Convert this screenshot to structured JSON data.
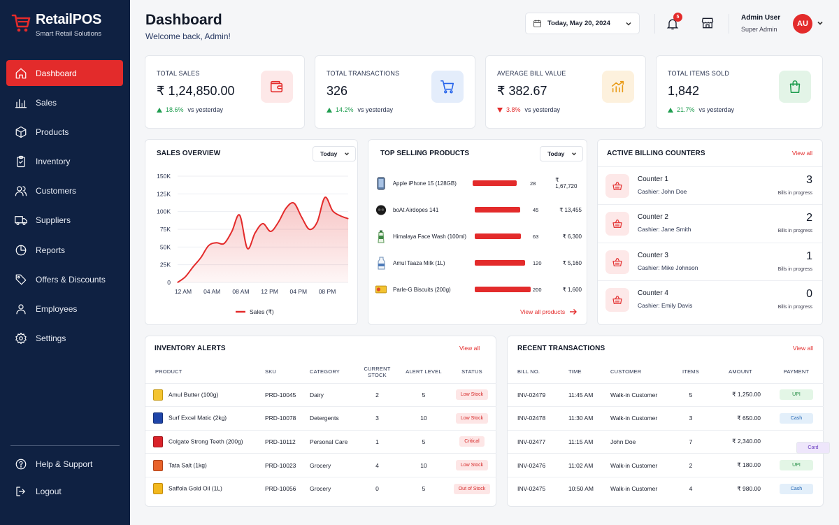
{
  "brand": {
    "name": "RetailPOS",
    "tagline": "Smart Retail Solutions"
  },
  "nav": {
    "items": [
      {
        "label": "Dashboard",
        "icon": "home-icon",
        "active": true
      },
      {
        "label": "Sales",
        "icon": "bar-chart-icon"
      },
      {
        "label": "Products",
        "icon": "box-icon"
      },
      {
        "label": "Inventory",
        "icon": "clipboard-icon"
      },
      {
        "label": "Customers",
        "icon": "users-icon"
      },
      {
        "label": "Suppliers",
        "icon": "truck-icon"
      },
      {
        "label": "Reports",
        "icon": "pie-chart-icon"
      },
      {
        "label": "Offers & Discounts",
        "icon": "tag-icon"
      },
      {
        "label": "Employees",
        "icon": "user-icon"
      },
      {
        "label": "Settings",
        "icon": "gear-icon"
      }
    ],
    "bottom": [
      {
        "label": "Help & Support",
        "icon": "help-icon"
      },
      {
        "label": "Logout",
        "icon": "logout-icon"
      }
    ]
  },
  "header": {
    "title": "Dashboard",
    "subtitle": "Welcome back, Admin!",
    "date": "Today, May 20, 2024",
    "notifications": "5",
    "user_name": "Admin User",
    "user_role": "Super Admin",
    "avatar_initials": "AU"
  },
  "stats": [
    {
      "label": "TOTAL SALES",
      "value": "₹ 1,24,850.00",
      "change": "18.6%",
      "direction": "up",
      "suffix": "vs yesterday",
      "icon": "wallet-icon",
      "color": "#e32b2b",
      "bg": "#fde8e8"
    },
    {
      "label": "TOTAL TRANSACTIONS",
      "value": "326",
      "change": "14.2%",
      "direction": "up",
      "suffix": "vs yesterday",
      "icon": "cart-icon",
      "color": "#2563eb",
      "bg": "#e4edfb"
    },
    {
      "label": "AVERAGE BILL VALUE",
      "value": "₹ 382.67",
      "change": "3.8%",
      "direction": "down",
      "suffix": "vs yesterday",
      "icon": "trend-bars-icon",
      "color": "#e89a16",
      "bg": "#fdf1dd"
    },
    {
      "label": "TOTAL ITEMS SOLD",
      "value": "1,842",
      "change": "21.7%",
      "direction": "up",
      "suffix": "vs yesterday",
      "icon": "bag-icon",
      "color": "#1f9d4f",
      "bg": "#e3f4e7"
    }
  ],
  "sales_overview": {
    "title": "SALES OVERVIEW",
    "range": "Today",
    "legend": "Sales (₹)"
  },
  "chart_data": {
    "type": "area",
    "x_ticks": [
      "12 AM",
      "04 AM",
      "08 AM",
      "12 PM",
      "04 PM",
      "08 PM"
    ],
    "y_ticks": [
      "0",
      "25K",
      "50K",
      "75K",
      "100K",
      "125K",
      "150K"
    ],
    "ylim": [
      0,
      150000
    ],
    "xlim": [
      0,
      22
    ],
    "series": [
      {
        "name": "Sales (₹)",
        "x": [
          0,
          1,
          2,
          3,
          4,
          5,
          6,
          7,
          8,
          9,
          10,
          11,
          12,
          13,
          14,
          15,
          16,
          17,
          18,
          19,
          20,
          21,
          22
        ],
        "values": [
          0,
          8000,
          22000,
          35000,
          52000,
          56000,
          55000,
          72000,
          95000,
          48000,
          70000,
          83000,
          72000,
          85000,
          105000,
          112000,
          92000,
          75000,
          85000,
          120000,
          101000,
          94000,
          90000
        ]
      }
    ],
    "color": "#e32b2b"
  },
  "top_products": {
    "title": "TOP SELLING PRODUCTS",
    "range": "Today",
    "view_all": "View all products",
    "max_qty": 200,
    "items": [
      {
        "name": "Apple iPhone 15 (128GB)",
        "qty": 28,
        "amount": "₹ 1,67,720"
      },
      {
        "name": "boAt Airdopes 141",
        "qty": 45,
        "amount": "₹ 13,455"
      },
      {
        "name": "Himalaya Face Wash (100ml)",
        "qty": 63,
        "amount": "₹ 6,300"
      },
      {
        "name": "Amul Taaza Milk (1L)",
        "qty": 120,
        "amount": "₹ 5,160"
      },
      {
        "name": "Parle-G Biscuits (200g)",
        "qty": 200,
        "amount": "₹ 1,600"
      }
    ]
  },
  "counters": {
    "title": "ACTIVE BILLING COUNTERS",
    "view_all": "View all",
    "items": [
      {
        "name": "Counter 1",
        "cashier": "Cashier: John Doe",
        "bills": "3",
        "sub": "Bills in progress"
      },
      {
        "name": "Counter 2",
        "cashier": "Cashier: Jane Smith",
        "bills": "2",
        "sub": "Bills in progress"
      },
      {
        "name": "Counter 3",
        "cashier": "Cashier: Mike Johnson",
        "bills": "1",
        "sub": "Bills in progress"
      },
      {
        "name": "Counter 4",
        "cashier": "Cashier: Emily Davis",
        "bills": "0",
        "sub": "Bills in progress"
      }
    ]
  },
  "inventory": {
    "title": "INVENTORY ALERTS",
    "view_all": "View all",
    "columns": [
      "PRODUCT",
      "SKU",
      "CATEGORY",
      "CURRENT STOCK",
      "ALERT LEVEL",
      "STATUS"
    ],
    "rows": [
      {
        "product": "Amul Butter (100g)",
        "sku": "PRD-10045",
        "category": "Dairy",
        "stock": "2",
        "alert": "5",
        "status": "Low Stock"
      },
      {
        "product": "Surf Excel Matic (2kg)",
        "sku": "PRD-10078",
        "category": "Detergents",
        "stock": "3",
        "alert": "10",
        "status": "Low Stock"
      },
      {
        "product": "Colgate Strong Teeth (200g)",
        "sku": "PRD-10112",
        "category": "Personal Care",
        "stock": "1",
        "alert": "5",
        "status": "Critical"
      },
      {
        "product": "Tata Salt (1kg)",
        "sku": "PRD-10023",
        "category": "Grocery",
        "stock": "4",
        "alert": "10",
        "status": "Low Stock"
      },
      {
        "product": "Saffola Gold Oil (1L)",
        "sku": "PRD-10056",
        "category": "Grocery",
        "stock": "0",
        "alert": "5",
        "status": "Out of Stock"
      }
    ]
  },
  "transactions": {
    "title": "RECENT TRANSACTIONS",
    "view_all": "View all",
    "columns": [
      "BILL NO.",
      "TIME",
      "CUSTOMER",
      "ITEMS",
      "AMOUNT",
      "PAYMENT"
    ],
    "rows": [
      {
        "bill": "INV-02479",
        "time": "11:45 AM",
        "customer": "Walk-in Customer",
        "items": "5",
        "amount": "₹ 1,250.00",
        "payment": "UPI"
      },
      {
        "bill": "INV-02478",
        "time": "11:30 AM",
        "customer": "Walk-in Customer",
        "items": "3",
        "amount": "₹ 650.00",
        "payment": "Cash"
      },
      {
        "bill": "INV-02477",
        "time": "11:15 AM",
        "customer": "John Doe",
        "items": "7",
        "amount": "₹ 2,340.00",
        "payment": "Card"
      },
      {
        "bill": "INV-02476",
        "time": "11:02 AM",
        "customer": "Walk-in Customer",
        "items": "2",
        "amount": "₹ 180.00",
        "payment": "UPI"
      },
      {
        "bill": "INV-02475",
        "time": "10:50 AM",
        "customer": "Walk-in Customer",
        "items": "4",
        "amount": "₹ 980.00",
        "payment": "Cash"
      }
    ]
  }
}
